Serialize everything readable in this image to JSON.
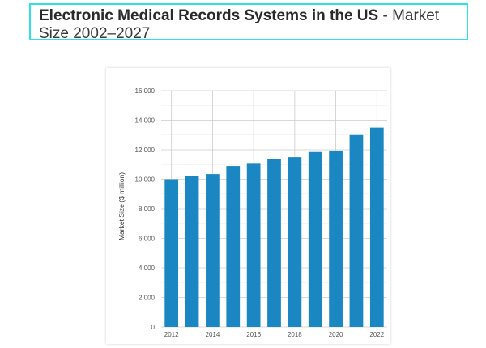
{
  "header": {
    "title_bold": "Electronic Medical Records Systems in the US",
    "title_rest": " - Market Size 2002–2027"
  },
  "colors": {
    "bar": "#1a87c3",
    "title_border": "#2fe0ea",
    "grid_major": "#cccccc",
    "grid_minor": "#eeeeee"
  },
  "chart_data": {
    "type": "bar",
    "title": "",
    "xlabel": "",
    "ylabel": "Market Size ($ million)",
    "categories": [
      "2012",
      "2013",
      "2014",
      "2015",
      "2016",
      "2017",
      "2018",
      "2019",
      "2020",
      "2021",
      "2022"
    ],
    "x_tick_labels": [
      "2012",
      "",
      "2014",
      "",
      "2016",
      "",
      "2018",
      "",
      "2020",
      "",
      "2022"
    ],
    "values": [
      10000,
      10200,
      10350,
      10900,
      11050,
      11350,
      11500,
      11850,
      11950,
      13000,
      13500
    ],
    "ylim": [
      0,
      16000
    ],
    "y_ticks": [
      0,
      2000,
      4000,
      6000,
      8000,
      10000,
      12000,
      14000,
      16000
    ],
    "y_tick_labels": [
      "0",
      "2,000",
      "4,000",
      "6,000",
      "8,000",
      "10,000",
      "12,000",
      "14,000",
      "16,000"
    ],
    "grid": true,
    "legend": "none"
  }
}
